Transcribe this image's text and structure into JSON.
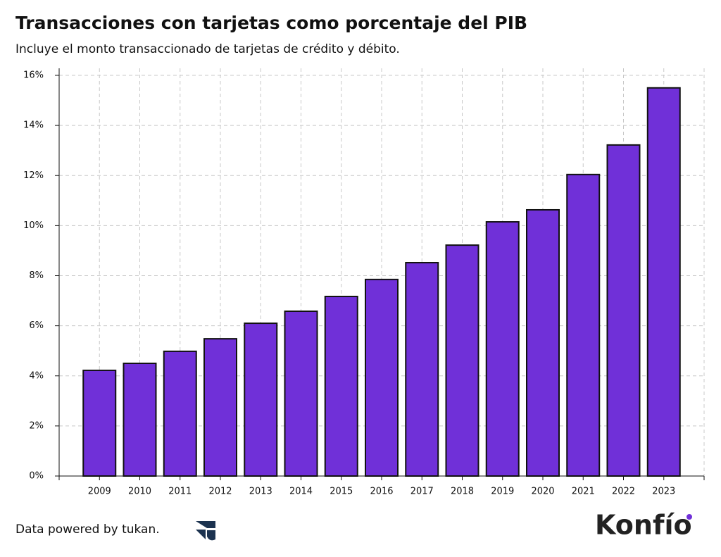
{
  "chart_data": {
    "type": "bar",
    "title": "Transacciones con tarjetas como porcentaje del PIB",
    "subtitle": "Incluye el monto transaccionado de tarjetas de crédito y débito.",
    "categories": [
      "2009",
      "2010",
      "2011",
      "2012",
      "2013",
      "2014",
      "2015",
      "2016",
      "2017",
      "2018",
      "2019",
      "2020",
      "2021",
      "2022",
      "2023"
    ],
    "values": [
      4.22,
      4.5,
      4.98,
      5.48,
      6.1,
      6.58,
      7.17,
      7.85,
      8.52,
      9.22,
      10.15,
      10.63,
      12.04,
      13.22,
      15.5
    ],
    "color": "#7030d8",
    "ylim": [
      0,
      16
    ],
    "yticks": [
      {
        "value": 0,
        "label": "0%"
      },
      {
        "value": 2,
        "label": "2%"
      },
      {
        "value": 4,
        "label": "4%"
      },
      {
        "value": 6,
        "label": "6%"
      },
      {
        "value": 8,
        "label": "8%"
      },
      {
        "value": 10,
        "label": "10%"
      },
      {
        "value": 12,
        "label": "12%"
      },
      {
        "value": 14,
        "label": "14%"
      },
      {
        "value": 16,
        "label": "16%"
      }
    ],
    "grid": true
  },
  "footer": {
    "credit": "Data powered by tukan.",
    "brand": "Konfío"
  }
}
